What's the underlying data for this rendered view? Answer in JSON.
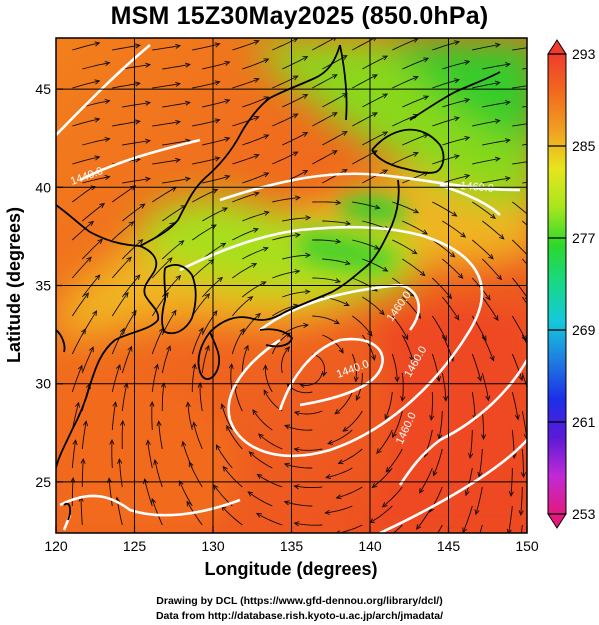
{
  "title": "MSM 15Z30May2025 (850.0hPa)",
  "map": {
    "xlabel": "Longitude (degrees)",
    "ylabel": "Latitude  (degrees)",
    "x_ticks": [
      "120",
      "125",
      "130",
      "135",
      "140",
      "145",
      "150"
    ],
    "y_ticks": [
      "25",
      "30",
      "35",
      "40",
      "45"
    ],
    "lon_range": [
      120,
      150
    ],
    "lat_range": [
      22.4,
      47.6
    ],
    "colorbar": {
      "min": 253,
      "max": 293,
      "labels": [
        "293",
        "285",
        "277",
        "269",
        "261",
        "253"
      ],
      "colors": [
        "#e3197e",
        "#c02ad6",
        "#5a1ad8",
        "#1c2fe8",
        "#1e7de0",
        "#14c8dc",
        "#18d88a",
        "#2bd82b",
        "#a8e61e",
        "#e6e61c",
        "#f0a022",
        "#f26a1e",
        "#ee3d2b"
      ]
    },
    "contour_labels": [
      "1440.0",
      "1460.0",
      "1460.0",
      "1460.0",
      "1440.0",
      "1460.0"
    ],
    "colors": {
      "coast": "#000000",
      "contour": "#ffffff",
      "grid": "#000000",
      "streamline": "#000000"
    }
  },
  "credits": {
    "line1": "Drawing by DCL (https://www.gfd-dennou.org/library/dcl/)",
    "line2": "Data from http://database.rish.kyoto-u.ac.jp/arch/jmadata/"
  }
}
